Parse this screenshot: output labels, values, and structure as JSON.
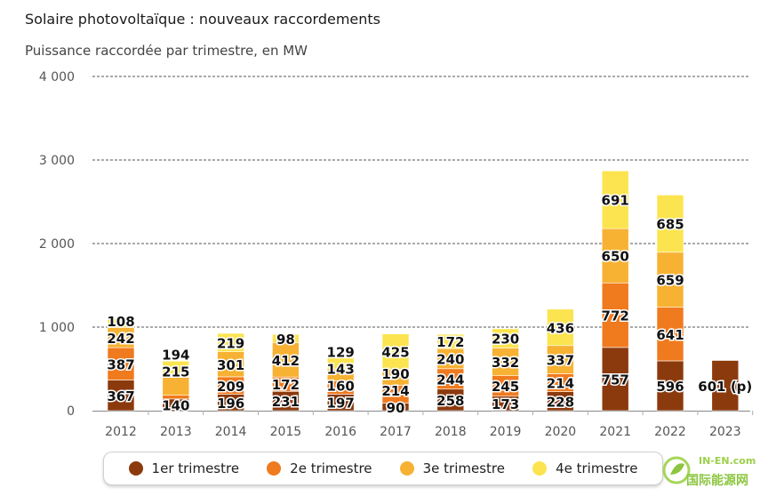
{
  "title": "Solaire photovoltaïque : nouveaux raccordements",
  "subtitle": "Puissance raccordée par trimestre, en MW",
  "colors": {
    "q1": "#8b3a0e",
    "q2": "#f07a1e",
    "q3": "#f7b234",
    "q4": "#fbe44f",
    "grid": "#555555",
    "axis_text": "#555555"
  },
  "legend": [
    {
      "label": "1er trimestre",
      "color": "#8b3a0e"
    },
    {
      "label": "2e trimestre",
      "color": "#f07a1e"
    },
    {
      "label": "3e trimestre",
      "color": "#f7b234"
    },
    {
      "label": "4e trimestre",
      "color": "#fbe44f"
    }
  ],
  "watermark": {
    "line1": "IN-EN.com",
    "line2": "国际能源网"
  },
  "chart_data": {
    "type": "bar",
    "stacked": true,
    "categories": [
      "2012",
      "2013",
      "2014",
      "2015",
      "2016",
      "2017",
      "2018",
      "2019",
      "2020",
      "2021",
      "2022",
      "2023"
    ],
    "series": [
      {
        "name": "1er trimestre",
        "values": [
          367,
          140,
          196,
          231,
          197,
          90,
          258,
          173,
          228,
          757,
          596,
          601
        ]
      },
      {
        "name": "2e trimestre",
        "values": [
          387,
          44,
          209,
          172,
          160,
          214,
          244,
          245,
          214,
          772,
          641,
          null
        ]
      },
      {
        "name": "3e trimestre",
        "values": [
          242,
          215,
          301,
          412,
          143,
          190,
          240,
          332,
          337,
          650,
          659,
          null
        ]
      },
      {
        "name": "4e trimestre",
        "values": [
          108,
          194,
          219,
          98,
          129,
          425,
          172,
          230,
          436,
          691,
          685,
          null
        ]
      }
    ],
    "labels": [
      [
        "367",
        "387",
        "242",
        "108"
      ],
      [
        "140",
        "",
        "215",
        "194"
      ],
      [
        "196",
        "209",
        "301",
        "219"
      ],
      [
        "231",
        "172",
        "412",
        "98"
      ],
      [
        "197",
        "160",
        "143",
        "129"
      ],
      [
        "90",
        "214",
        "190",
        "425"
      ],
      [
        "258",
        "244",
        "240",
        "172"
      ],
      [
        "173",
        "245",
        "332",
        "230"
      ],
      [
        "228",
        "214",
        "337",
        "436"
      ],
      [
        "757",
        "772",
        "650",
        "691"
      ],
      [
        "596",
        "641",
        "659",
        "685"
      ],
      [
        "601 (p)",
        "",
        "",
        ""
      ]
    ],
    "yticks": [
      0,
      1000,
      2000,
      3000,
      4000
    ],
    "ytick_labels": [
      "0",
      "1 000",
      "2 000",
      "3 000",
      "4 000"
    ],
    "ylim": [
      0,
      4000
    ],
    "grid": true,
    "legend_position": "bottom"
  }
}
